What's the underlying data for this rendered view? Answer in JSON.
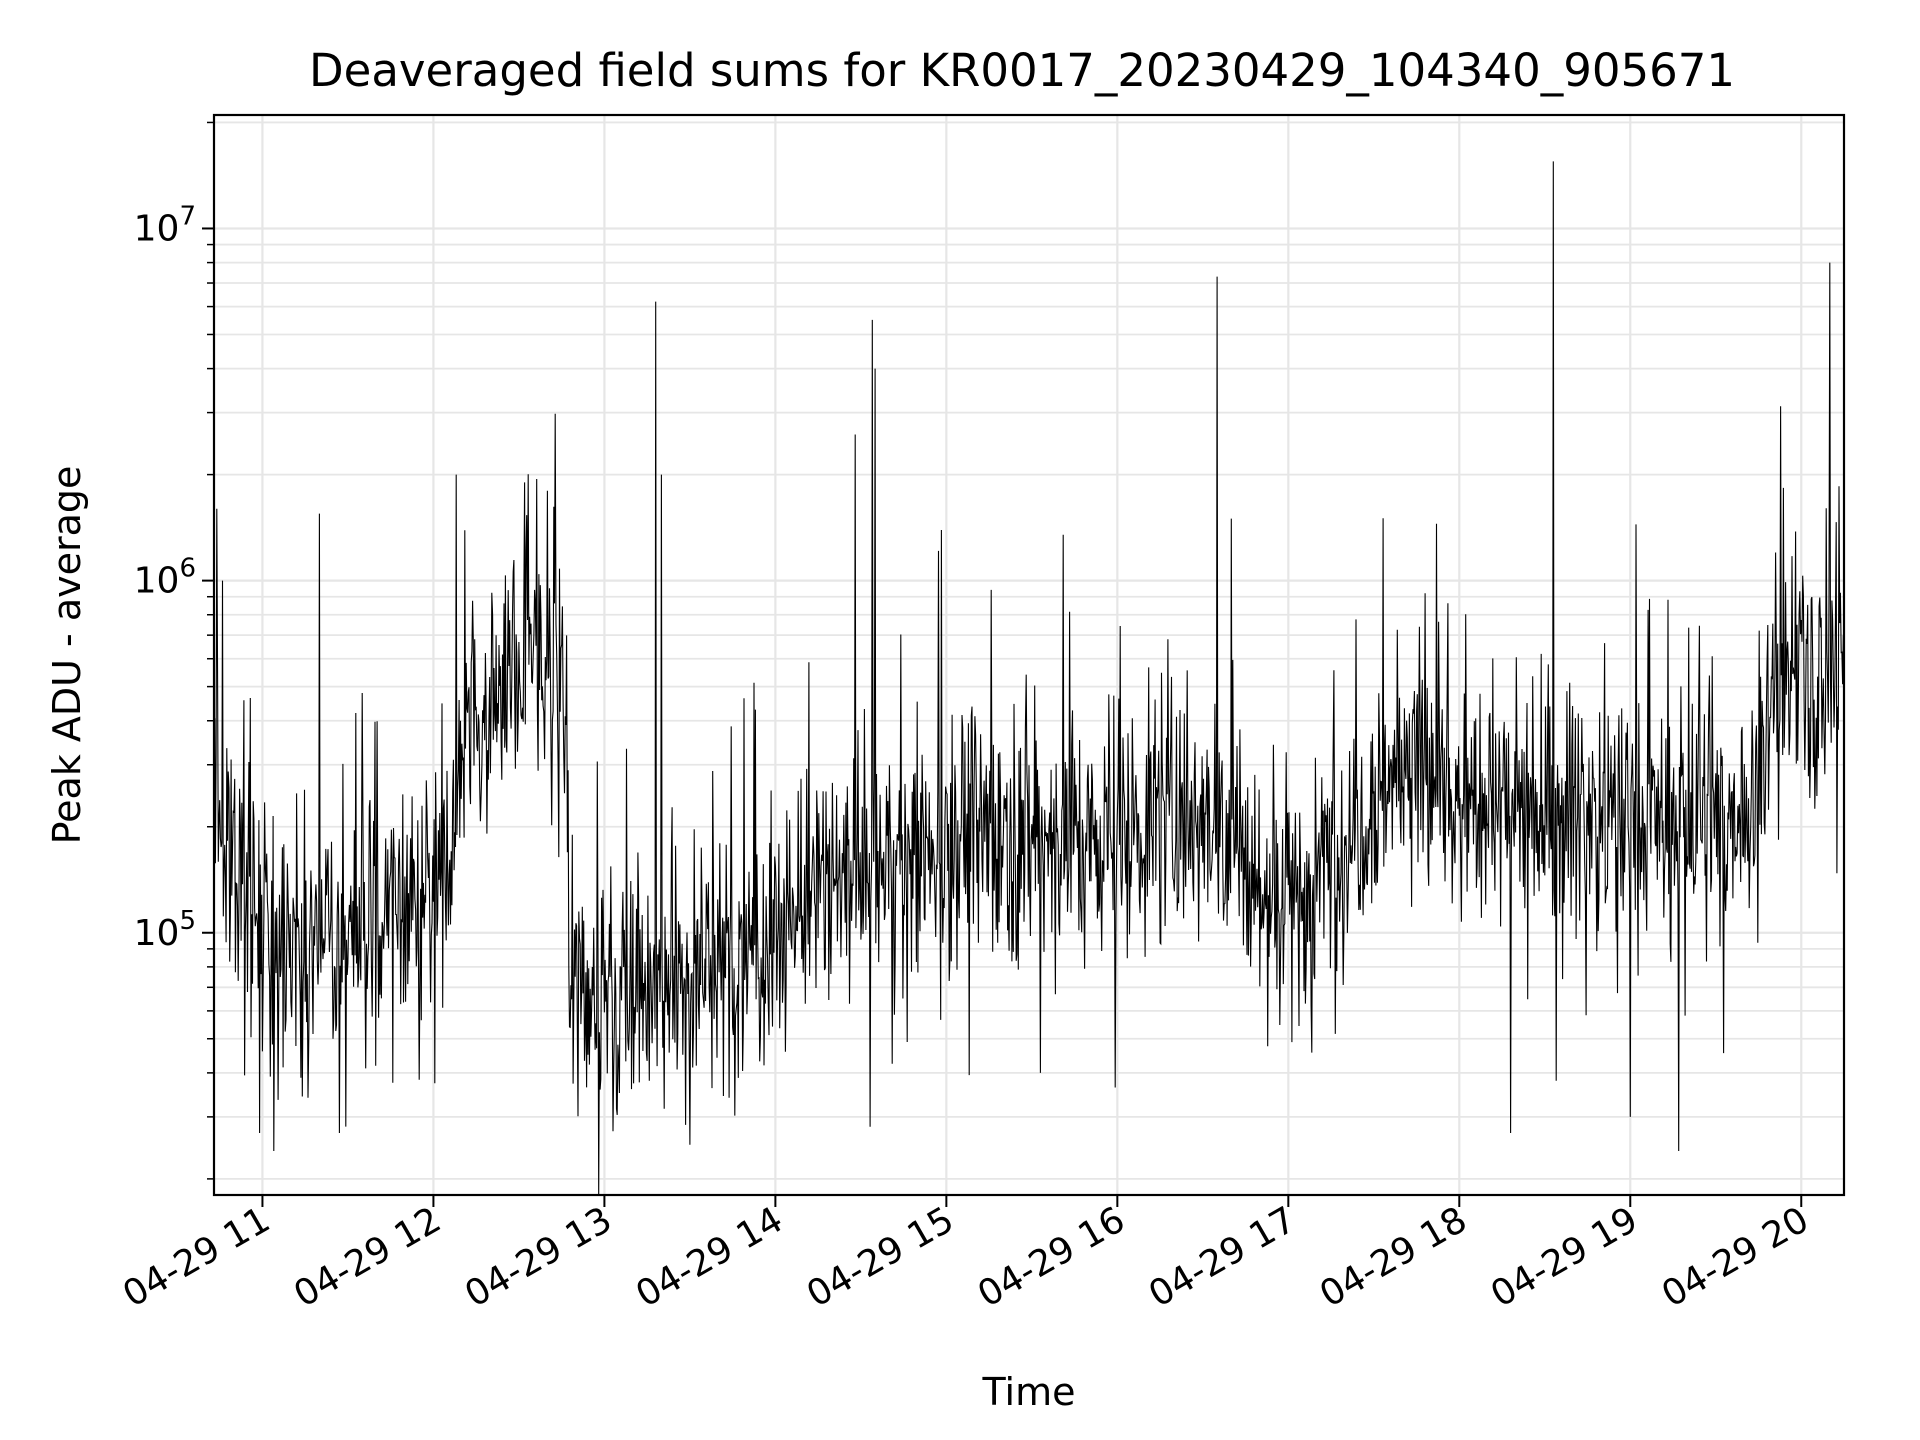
{
  "chart_data": {
    "type": "line",
    "title": "Deaveraged field sums for KR0017_20230429_104340_905671",
    "xlabel": "Time",
    "ylabel": "Peak ADU - average",
    "y_scale": "log",
    "grid": true,
    "ylim": [
      18000,
      21000000
    ],
    "xlim": [
      "2023-04-29 10:43",
      "2023-04-29 20:15"
    ],
    "x_ticks": [
      "04-29 11",
      "04-29 12",
      "04-29 13",
      "04-29 14",
      "04-29 15",
      "04-29 16",
      "04-29 17",
      "04-29 18",
      "04-29 19",
      "04-29 20"
    ],
    "y_ticks": [
      {
        "base": "10",
        "exp": "5"
      },
      {
        "base": "10",
        "exp": "6"
      },
      {
        "base": "10",
        "exp": "7"
      }
    ],
    "line_color": "#000000",
    "grid_color": "#e6e6e6",
    "series": [
      {
        "name": "",
        "baseline": [
          [
            "2023-04-29 10:43",
            230000
          ],
          [
            "2023-04-29 10:50",
            180000
          ],
          [
            "2023-04-29 11:00",
            110000
          ],
          [
            "2023-04-29 11:20",
            90000
          ],
          [
            "2023-04-29 11:35",
            95000
          ],
          [
            "2023-04-29 11:50",
            120000
          ],
          [
            "2023-04-29 12:05",
            150000
          ],
          [
            "2023-04-29 12:10",
            350000
          ],
          [
            "2023-04-29 12:30",
            600000
          ],
          [
            "2023-04-29 12:45",
            550000
          ],
          [
            "2023-04-29 12:48",
            75000
          ],
          [
            "2023-04-29 13:10",
            70000
          ],
          [
            "2023-04-29 13:30",
            75000
          ],
          [
            "2023-04-29 13:50",
            85000
          ],
          [
            "2023-04-29 14:10",
            120000
          ],
          [
            "2023-04-29 14:30",
            150000
          ],
          [
            "2023-04-29 14:50",
            160000
          ],
          [
            "2023-04-29 15:00",
            200000
          ],
          [
            "2023-04-29 15:30",
            190000
          ],
          [
            "2023-04-29 16:00",
            180000
          ],
          [
            "2023-04-29 16:30",
            240000
          ],
          [
            "2023-04-29 16:50",
            130000
          ],
          [
            "2023-04-29 17:10",
            140000
          ],
          [
            "2023-04-29 17:30",
            250000
          ],
          [
            "2023-04-29 17:45",
            320000
          ],
          [
            "2023-04-29 18:00",
            220000
          ],
          [
            "2023-04-29 18:30",
            230000
          ],
          [
            "2023-04-29 19:00",
            210000
          ],
          [
            "2023-04-29 19:30",
            200000
          ],
          [
            "2023-04-29 19:45",
            240000
          ],
          [
            "2023-04-29 19:50",
            500000
          ],
          [
            "2023-04-29 20:15",
            600000
          ]
        ],
        "peaks": [
          [
            "2023-04-29 10:44",
            1600000
          ],
          [
            "2023-04-29 10:46",
            1000000
          ],
          [
            "2023-04-29 11:20",
            1550000
          ],
          [
            "2023-04-29 12:08",
            2000000
          ],
          [
            "2023-04-29 12:32",
            1900000
          ],
          [
            "2023-04-29 12:40",
            1800000
          ],
          [
            "2023-04-29 13:18",
            6200000
          ],
          [
            "2023-04-29 13:20",
            2000000
          ],
          [
            "2023-04-29 14:28",
            2600000
          ],
          [
            "2023-04-29 14:34",
            5500000
          ],
          [
            "2023-04-29 14:35",
            4000000
          ],
          [
            "2023-04-29 15:41",
            1350000
          ],
          [
            "2023-04-29 16:35",
            7300000
          ],
          [
            "2023-04-29 16:40",
            1500000
          ],
          [
            "2023-04-29 17:52",
            1450000
          ],
          [
            "2023-04-29 18:33",
            15500000
          ],
          [
            "2023-04-29 20:10",
            8000000
          ]
        ],
        "dips": [
          [
            "2023-04-29 10:59",
            27000
          ],
          [
            "2023-04-29 11:04",
            24000
          ],
          [
            "2023-04-29 11:27",
            27000
          ],
          [
            "2023-04-29 13:30",
            25000
          ],
          [
            "2023-04-29 15:33",
            40000
          ],
          [
            "2023-04-29 18:18",
            27000
          ],
          [
            "2023-04-29 18:34",
            38000
          ],
          [
            "2023-04-29 19:00",
            30000
          ],
          [
            "2023-04-29 19:17",
            24000
          ]
        ]
      }
    ]
  }
}
